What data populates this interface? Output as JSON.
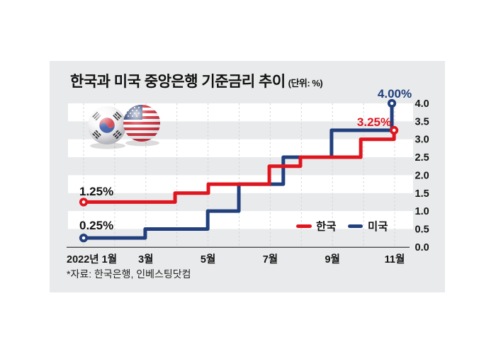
{
  "title": {
    "text": "한국과 미국 중앙은행 기준금리 추이",
    "unit": "(단위: %)"
  },
  "source": "*자료: 한국은행, 인베스팅닷컴",
  "legend": {
    "korea": "한국",
    "us": "미국"
  },
  "colors": {
    "korea": "#e0161f",
    "us": "#21407d",
    "card_bg": "#e9eaeb",
    "stripe_white": "#ffffff",
    "grid": "#d4d4d4",
    "axis": "#4a4a4a",
    "text": "#111111"
  },
  "chart_data": {
    "type": "line",
    "subtype": "step",
    "title": "한국과 미국 중앙은행 기준금리 추이",
    "unit": "%",
    "ylim": [
      0.0,
      4.0
    ],
    "grid": "vertical-dashed-monthly",
    "legend_position": "inside-bottom-right",
    "y_tick_labels": [
      "4.0",
      "3.5",
      "3.0",
      "2.5",
      "2.0",
      "1.5",
      "1.0",
      "0.5",
      "0.0"
    ],
    "x_ticks": [
      {
        "label": "2022년 1월",
        "month": 1,
        "align": "start"
      },
      {
        "label": "3월",
        "month": 3
      },
      {
        "label": "5월",
        "month": 5
      },
      {
        "label": "7월",
        "month": 7
      },
      {
        "label": "9월",
        "month": 9
      },
      {
        "label": "11월",
        "month": 11
      }
    ],
    "series": [
      {
        "name": "미국",
        "color": "#21407d",
        "start_label": "0.25%",
        "end_label": "4.00%",
        "steps": [
          {
            "month": 1.0,
            "rate": 0.25
          },
          {
            "month": 2.98,
            "rate": 0.5
          },
          {
            "month": 4.99,
            "rate": 1.0
          },
          {
            "month": 5.99,
            "rate": 1.75
          },
          {
            "month": 7.42,
            "rate": 2.5
          },
          {
            "month": 8.97,
            "rate": 3.25
          },
          {
            "month": 10.91,
            "rate": 4.0
          }
        ]
      },
      {
        "name": "한국",
        "color": "#e0161f",
        "start_label": "1.25%",
        "end_label": "3.25%",
        "steps": [
          {
            "month": 1.0,
            "rate": 1.25
          },
          {
            "month": 3.94,
            "rate": 1.5
          },
          {
            "month": 5.01,
            "rate": 1.75
          },
          {
            "month": 6.97,
            "rate": 2.25
          },
          {
            "month": 7.97,
            "rate": 2.5
          },
          {
            "month": 9.91,
            "rate": 3.0
          },
          {
            "month": 10.98,
            "rate": 3.25
          }
        ]
      }
    ]
  }
}
